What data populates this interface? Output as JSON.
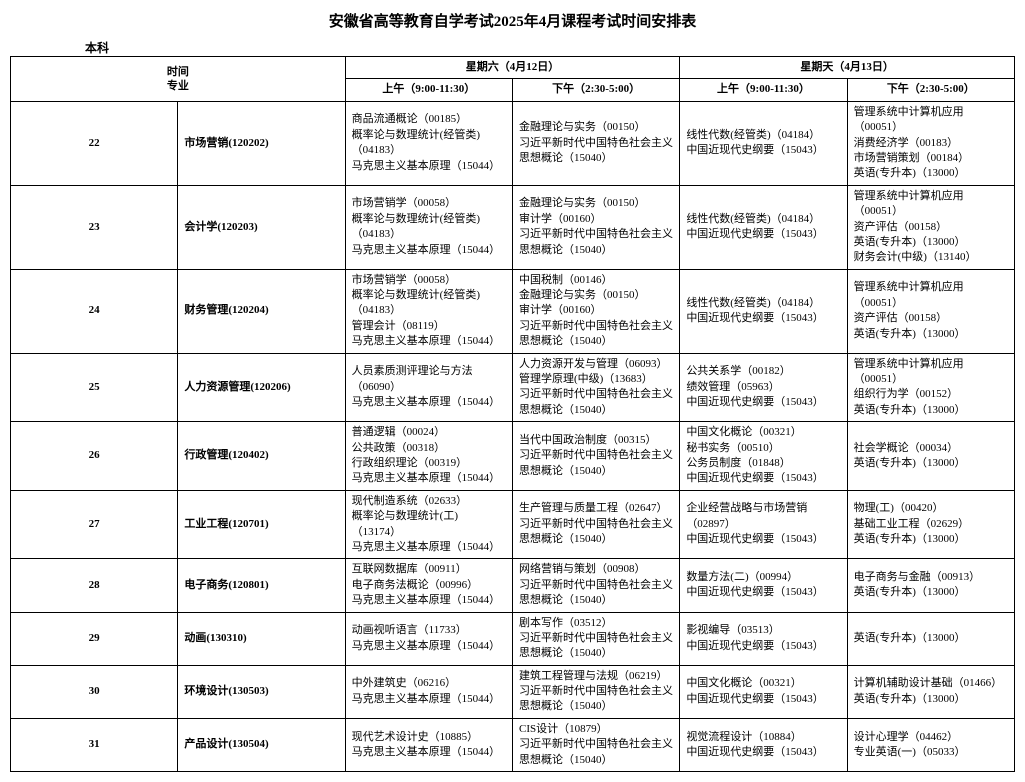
{
  "title": "安徽省高等教育自学考试2025年4月课程考试时间安排表",
  "level": "本科",
  "header": {
    "time_label": "时间",
    "major_label": "专业",
    "day1": "星期六（4月12日）",
    "day2": "星期天（4月13日）",
    "am": "上午（9:00-11:30）",
    "pm": "下午（2:30-5:00）"
  },
  "rows": [
    {
      "n": "22",
      "major": "市场营销(120202)",
      "d1am": "商品流通概论（00185）\n概率论与数理统计(经管类)（04183）\n马克思主义基本原理（15044）",
      "d1pm": "金融理论与实务（00150）\n习近平新时代中国特色社会主义思想概论（15040）",
      "d2am": "线性代数(经管类)（04184）\n中国近现代史纲要（15043）",
      "d2pm": "管理系统中计算机应用（00051）\n消费经济学（00183）\n市场营销策划（00184）\n英语(专升本)（13000）"
    },
    {
      "n": "23",
      "major": "会计学(120203)",
      "d1am": "市场营销学（00058）\n概率论与数理统计(经管类)（04183）\n马克思主义基本原理（15044）",
      "d1pm": "金融理论与实务（00150）\n审计学（00160）\n习近平新时代中国特色社会主义思想概论（15040）",
      "d2am": "线性代数(经管类)（04184）\n中国近现代史纲要（15043）",
      "d2pm": "管理系统中计算机应用（00051）\n资产评估（00158）\n英语(专升本)（13000）\n财务会计(中级)（13140）"
    },
    {
      "n": "24",
      "major": "财务管理(120204)",
      "d1am": "市场营销学（00058）\n概率论与数理统计(经管类)（04183）\n管理会计（08119）\n马克思主义基本原理（15044）",
      "d1pm": "中国税制（00146）\n金融理论与实务（00150）\n审计学（00160）\n习近平新时代中国特色社会主义思想概论（15040）",
      "d2am": "线性代数(经管类)（04184）\n中国近现代史纲要（15043）",
      "d2pm": "管理系统中计算机应用（00051）\n资产评估（00158）\n英语(专升本)（13000）"
    },
    {
      "n": "25",
      "major": "人力资源管理(120206)",
      "d1am": "人员素质测评理论与方法（06090）\n马克思主义基本原理（15044）",
      "d1pm": "人力资源开发与管理（06093）\n管理学原理(中级)（13683）\n习近平新时代中国特色社会主义思想概论（15040）",
      "d2am": "公共关系学（00182）\n绩效管理（05963）\n中国近现代史纲要（15043）",
      "d2pm": "管理系统中计算机应用（00051）\n组织行为学（00152）\n英语(专升本)（13000）"
    },
    {
      "n": "26",
      "major": "行政管理(120402)",
      "d1am": "普通逻辑（00024）\n公共政策（00318）\n行政组织理论（00319）\n马克思主义基本原理（15044）",
      "d1pm": "当代中国政治制度（00315）\n习近平新时代中国特色社会主义思想概论（15040）",
      "d2am": "中国文化概论（00321）\n秘书实务（00510）\n公务员制度（01848）\n中国近现代史纲要（15043）",
      "d2pm": "社会学概论（00034）\n英语(专升本)（13000）"
    },
    {
      "n": "27",
      "major": "工业工程(120701)",
      "d1am": "现代制造系统（02633）\n概率论与数理统计(工)（13174）\n马克思主义基本原理（15044）",
      "d1pm": "生产管理与质量工程（02647）\n习近平新时代中国特色社会主义思想概论（15040）",
      "d2am": "企业经营战略与市场营销（02897）\n中国近现代史纲要（15043）",
      "d2pm": "物理(工)（00420）\n基础工业工程（02629）\n英语(专升本)（13000）"
    },
    {
      "n": "28",
      "major": "电子商务(120801)",
      "d1am": "互联网数据库（00911）\n电子商务法概论（00996）\n马克思主义基本原理（15044）",
      "d1pm": "网络营销与策划（00908）\n习近平新时代中国特色社会主义思想概论（15040）",
      "d2am": "数量方法(二)（00994）\n中国近现代史纲要（15043）",
      "d2pm": "电子商务与金融（00913）\n英语(专升本)（13000）"
    },
    {
      "n": "29",
      "major": "动画(130310)",
      "d1am": "动画视听语言（11733）\n马克思主义基本原理（15044）",
      "d1pm": "剧本写作（03512）\n习近平新时代中国特色社会主义思想概论（15040）",
      "d2am": "影视编导（03513）\n中国近现代史纲要（15043）",
      "d2pm": "英语(专升本)（13000）"
    },
    {
      "n": "30",
      "major": "环境设计(130503)",
      "d1am": "中外建筑史（06216）\n马克思主义基本原理（15044）",
      "d1pm": "建筑工程管理与法规（06219）\n习近平新时代中国特色社会主义思想概论（15040）",
      "d2am": "中国文化概论（00321）\n中国近现代史纲要（15043）",
      "d2pm": "计算机辅助设计基础（01466）\n英语(专升本)（13000）"
    },
    {
      "n": "31",
      "major": "产品设计(130504)",
      "d1am": "现代艺术设计史（10885）\n马克思主义基本原理（15044）",
      "d1pm": "CIS设计（10879）\n习近平新时代中国特色社会主义思想概论（15040）",
      "d2am": "视觉流程设计（10884）\n中国近现代史纲要（15043）",
      "d2pm": "设计心理学（04462）\n专业英语(一)（05033）"
    }
  ]
}
